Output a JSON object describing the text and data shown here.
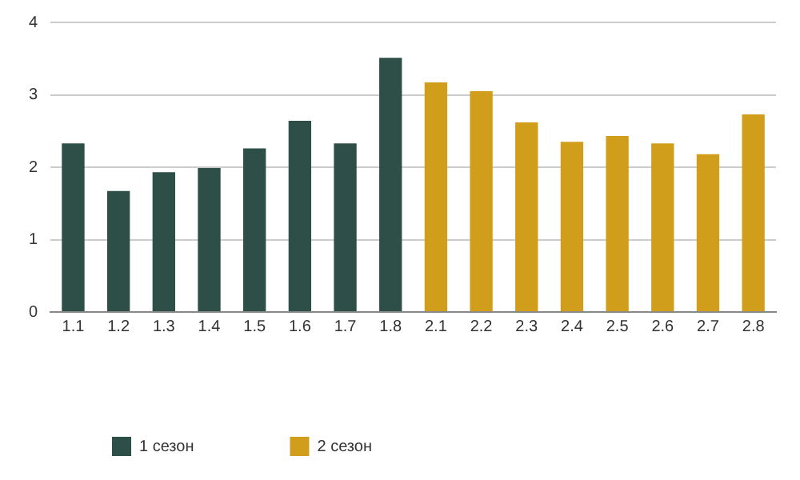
{
  "chart_data": {
    "type": "bar",
    "categories": [
      "1.1",
      "1.2",
      "1.3",
      "1.4",
      "1.5",
      "1.6",
      "1.7",
      "1.8",
      "2.1",
      "2.2",
      "2.3",
      "2.4",
      "2.5",
      "2.6",
      "2.7",
      "2.8"
    ],
    "series": [
      {
        "name": "1 сезон",
        "color": "#2d4f47",
        "values": [
          2.33,
          1.67,
          1.93,
          1.99,
          2.26,
          2.64,
          2.33,
          3.51,
          null,
          null,
          null,
          null,
          null,
          null,
          null,
          null
        ]
      },
      {
        "name": "2 сезон",
        "color": "#d19e1b",
        "values": [
          null,
          null,
          null,
          null,
          null,
          null,
          null,
          null,
          3.17,
          3.05,
          2.62,
          2.35,
          2.43,
          2.33,
          2.18,
          2.73
        ]
      }
    ],
    "ylim": [
      0,
      4
    ],
    "yticks": [
      0,
      1,
      2,
      3,
      4
    ],
    "grid": "y",
    "legend": "bottom left"
  }
}
